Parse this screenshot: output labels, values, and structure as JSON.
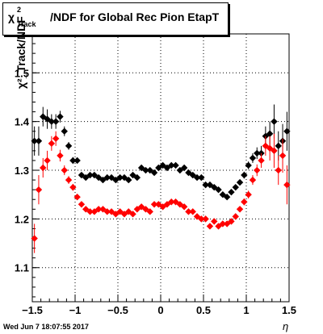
{
  "title": {
    "symbol": "χ",
    "superscript": "2",
    "subscript": "Track",
    "text": "/NDF for Global Rec Pion EtapT"
  },
  "footer_timestamp": "Wed Jun  7 18:07:55 2017",
  "chart_data": {
    "type": "scatter",
    "xlabel": "η",
    "ylabel": "χ²_Track/NDF",
    "xlim": [
      -1.5,
      1.5
    ],
    "ylim": [
      1.03,
      1.58
    ],
    "x_ticks": [
      -1.5,
      -1.0,
      -0.5,
      0,
      0.5,
      1.0,
      1.5
    ],
    "x_tick_labels": [
      "−1.5",
      "−1",
      "−0.5",
      "0",
      "0.5",
      "1",
      "1.5"
    ],
    "y_ticks": [
      1.1,
      1.2,
      1.3,
      1.4,
      1.5
    ],
    "y_tick_labels": [
      "1.1",
      "1.2",
      "1.3",
      "1.4",
      "1.5"
    ],
    "grid": true,
    "series": [
      {
        "color": "#000000",
        "x": [
          -1.475,
          -1.425,
          -1.375,
          -1.325,
          -1.275,
          -1.225,
          -1.175,
          -1.125,
          -1.075,
          -1.025,
          -0.975,
          -0.925,
          -0.875,
          -0.825,
          -0.775,
          -0.725,
          -0.675,
          -0.625,
          -0.575,
          -0.525,
          -0.475,
          -0.425,
          -0.375,
          -0.325,
          -0.275,
          -0.225,
          -0.175,
          -0.125,
          -0.075,
          -0.025,
          0.025,
          0.075,
          0.125,
          0.175,
          0.225,
          0.275,
          0.325,
          0.375,
          0.425,
          0.475,
          0.525,
          0.575,
          0.625,
          0.675,
          0.725,
          0.775,
          0.825,
          0.875,
          0.925,
          0.975,
          1.025,
          1.075,
          1.125,
          1.175,
          1.225,
          1.275,
          1.325,
          1.375,
          1.425,
          1.475
        ],
        "y": [
          1.36,
          1.36,
          1.41,
          1.405,
          1.4,
          1.4,
          1.41,
          1.38,
          1.35,
          1.32,
          1.32,
          1.29,
          1.285,
          1.29,
          1.29,
          1.285,
          1.28,
          1.285,
          1.285,
          1.28,
          1.285,
          1.285,
          1.28,
          1.29,
          1.285,
          1.305,
          1.3,
          1.3,
          1.295,
          1.305,
          1.31,
          1.305,
          1.31,
          1.31,
          1.3,
          1.305,
          1.295,
          1.29,
          1.285,
          1.285,
          1.27,
          1.27,
          1.265,
          1.26,
          1.25,
          1.245,
          1.255,
          1.265,
          1.275,
          1.29,
          1.31,
          1.325,
          1.335,
          1.335,
          1.37,
          1.375,
          1.4,
          1.35,
          1.36,
          1.38
        ],
        "err": [
          0.03,
          0.03,
          0.02,
          0.02,
          0.015,
          0.015,
          0.012,
          0.01,
          0.008,
          0.007,
          0.006,
          0.005,
          0.005,
          0.005,
          0.005,
          0.005,
          0.005,
          0.005,
          0.005,
          0.005,
          0.005,
          0.005,
          0.005,
          0.005,
          0.005,
          0.005,
          0.005,
          0.005,
          0.005,
          0.005,
          0.005,
          0.005,
          0.005,
          0.005,
          0.005,
          0.005,
          0.005,
          0.005,
          0.005,
          0.005,
          0.005,
          0.005,
          0.005,
          0.005,
          0.005,
          0.005,
          0.005,
          0.005,
          0.006,
          0.007,
          0.008,
          0.01,
          0.012,
          0.015,
          0.02,
          0.025,
          0.035,
          0.03,
          0.035,
          0.04
        ]
      },
      {
        "color": "#ff0000",
        "x": [
          -1.475,
          -1.425,
          -1.375,
          -1.325,
          -1.275,
          -1.225,
          -1.175,
          -1.125,
          -1.075,
          -1.025,
          -0.975,
          -0.925,
          -0.875,
          -0.825,
          -0.775,
          -0.725,
          -0.675,
          -0.625,
          -0.575,
          -0.525,
          -0.475,
          -0.425,
          -0.375,
          -0.325,
          -0.275,
          -0.225,
          -0.175,
          -0.125,
          -0.075,
          -0.025,
          0.025,
          0.075,
          0.125,
          0.175,
          0.225,
          0.275,
          0.325,
          0.375,
          0.425,
          0.475,
          0.525,
          0.575,
          0.625,
          0.675,
          0.725,
          0.775,
          0.825,
          0.875,
          0.925,
          0.975,
          1.025,
          1.075,
          1.125,
          1.175,
          1.225,
          1.275,
          1.325,
          1.375,
          1.425,
          1.475
        ],
        "y": [
          1.16,
          1.26,
          1.305,
          1.32,
          1.355,
          1.365,
          1.33,
          1.3,
          1.28,
          1.265,
          1.245,
          1.23,
          1.22,
          1.215,
          1.215,
          1.22,
          1.22,
          1.215,
          1.215,
          1.21,
          1.215,
          1.21,
          1.215,
          1.21,
          1.22,
          1.225,
          1.22,
          1.215,
          1.23,
          1.23,
          1.225,
          1.23,
          1.235,
          1.235,
          1.23,
          1.225,
          1.215,
          1.215,
          1.205,
          1.2,
          1.2,
          1.185,
          1.195,
          1.185,
          1.19,
          1.19,
          1.195,
          1.205,
          1.22,
          1.235,
          1.25,
          1.28,
          1.3,
          1.32,
          1.35,
          1.345,
          1.34,
          1.3,
          1.33,
          1.27
        ],
        "err": [
          0.03,
          0.03,
          0.02,
          0.02,
          0.015,
          0.015,
          0.012,
          0.01,
          0.008,
          0.007,
          0.006,
          0.005,
          0.005,
          0.005,
          0.005,
          0.005,
          0.005,
          0.005,
          0.005,
          0.005,
          0.005,
          0.005,
          0.005,
          0.005,
          0.005,
          0.005,
          0.005,
          0.005,
          0.005,
          0.005,
          0.005,
          0.005,
          0.005,
          0.005,
          0.005,
          0.005,
          0.005,
          0.005,
          0.005,
          0.005,
          0.005,
          0.005,
          0.005,
          0.005,
          0.005,
          0.005,
          0.005,
          0.005,
          0.006,
          0.007,
          0.008,
          0.01,
          0.012,
          0.015,
          0.02,
          0.025,
          0.035,
          0.03,
          0.035,
          0.04
        ]
      }
    ]
  }
}
